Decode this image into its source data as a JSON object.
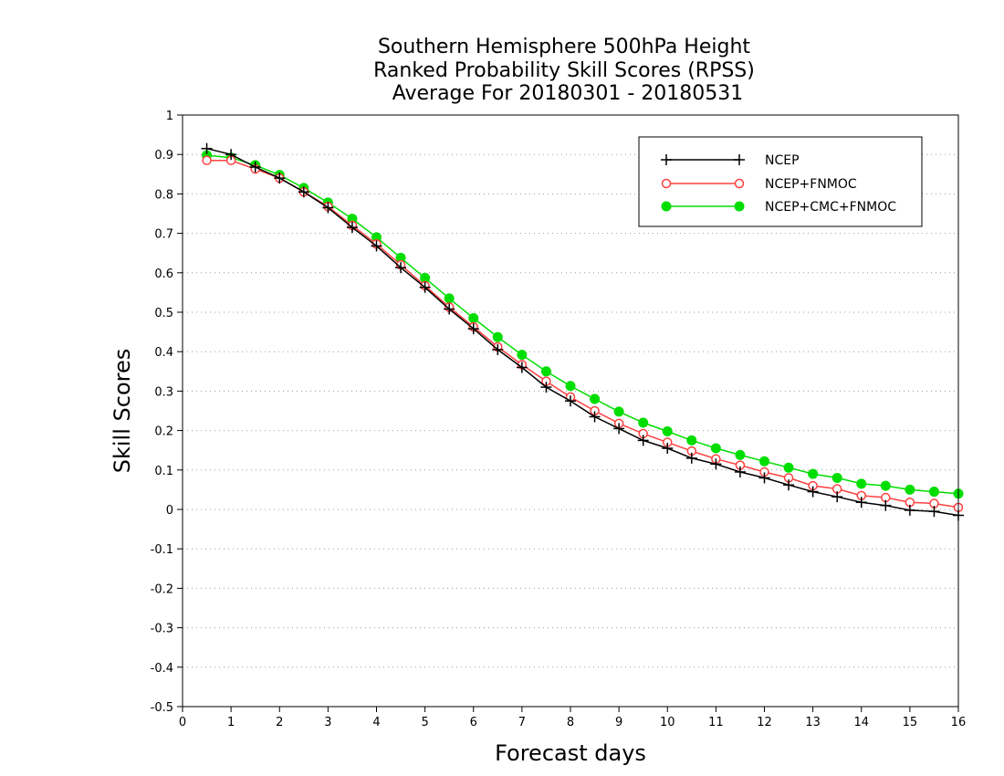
{
  "chart_data": {
    "type": "line",
    "title": [
      "Southern Hemisphere 500hPa Height",
      "Ranked Probability Skill Scores (RPSS)",
      "Average For 20180301 - 20180531"
    ],
    "xlabel": "Forecast days",
    "ylabel": "Skill Scores",
    "xlim": [
      0,
      16
    ],
    "ylim": [
      -0.5,
      1
    ],
    "xticks": [
      0,
      1,
      2,
      3,
      4,
      5,
      6,
      7,
      8,
      9,
      10,
      11,
      12,
      13,
      14,
      15,
      16
    ],
    "yticks": [
      -0.5,
      -0.4,
      -0.3,
      -0.2,
      -0.1,
      0,
      0.1,
      0.2,
      0.3,
      0.4,
      0.5,
      0.6,
      0.7,
      0.8,
      0.9,
      1
    ],
    "ytick_labels": [
      "-0.5",
      "-0.4",
      "-0.3",
      "-0.2",
      "-0.1",
      "0",
      "0.1",
      "0.2",
      "0.3",
      "0.4",
      "0.5",
      "0.6",
      "0.7",
      "0.8",
      "0.9",
      "1"
    ],
    "grid": "horizontal dotted",
    "legend_position": "top-right",
    "x": [
      0.5,
      1,
      1.5,
      2,
      2.5,
      3,
      3.5,
      4,
      4.5,
      5,
      5.5,
      6,
      6.5,
      7,
      7.5,
      8,
      8.5,
      9,
      9.5,
      10,
      10.5,
      11,
      11.5,
      12,
      12.5,
      13,
      13.5,
      14,
      14.5,
      15,
      15.5,
      16
    ],
    "series": [
      {
        "name": "NCEP",
        "color": "#000000",
        "marker": "plus",
        "values": [
          0.915,
          0.9,
          0.868,
          0.84,
          0.805,
          0.765,
          0.715,
          0.668,
          0.613,
          0.563,
          0.508,
          0.458,
          0.405,
          0.36,
          0.31,
          0.275,
          0.235,
          0.205,
          0.175,
          0.155,
          0.13,
          0.115,
          0.095,
          0.08,
          0.062,
          0.045,
          0.032,
          0.018,
          0.01,
          -0.002,
          -0.005,
          -0.015
        ]
      },
      {
        "name": "NCEP+FNMOC",
        "color": "#ff4040",
        "marker": "open-circle",
        "values": [
          0.885,
          0.885,
          0.863,
          0.84,
          0.805,
          0.768,
          0.72,
          0.673,
          0.62,
          0.567,
          0.513,
          0.463,
          0.412,
          0.367,
          0.325,
          0.285,
          0.25,
          0.218,
          0.192,
          0.17,
          0.148,
          0.128,
          0.112,
          0.095,
          0.08,
          0.06,
          0.052,
          0.035,
          0.03,
          0.018,
          0.015,
          0.005
        ]
      },
      {
        "name": "NCEP+CMC+FNMOC",
        "color": "#00dd00",
        "marker": "filled-circle",
        "values": [
          0.898,
          0.892,
          0.873,
          0.848,
          0.815,
          0.778,
          0.737,
          0.69,
          0.638,
          0.587,
          0.535,
          0.485,
          0.437,
          0.392,
          0.35,
          0.313,
          0.28,
          0.248,
          0.22,
          0.198,
          0.175,
          0.155,
          0.138,
          0.122,
          0.106,
          0.09,
          0.08,
          0.065,
          0.06,
          0.05,
          0.045,
          0.04
        ]
      }
    ]
  }
}
